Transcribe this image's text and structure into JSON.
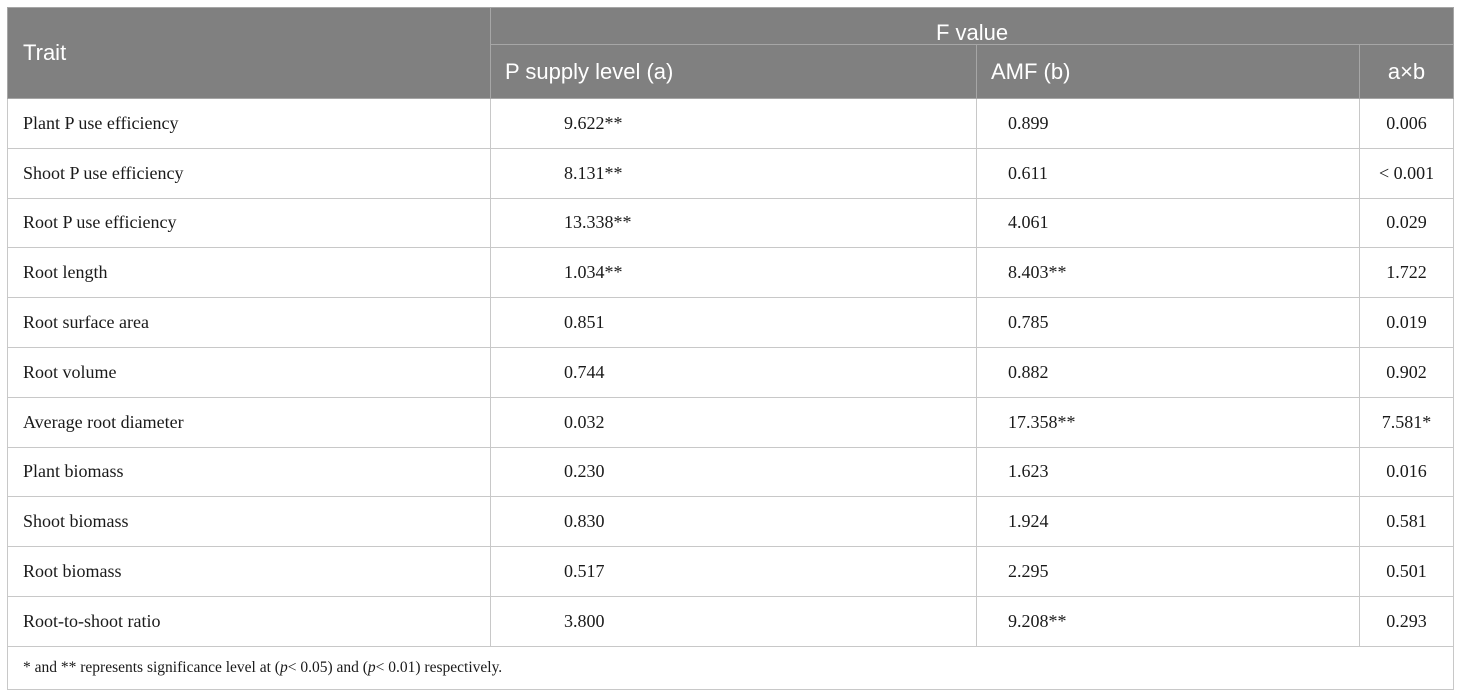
{
  "header": {
    "trait_label": "Trait",
    "group_label": "F value",
    "col_a": "P supply level (a)",
    "col_b": "AMF (b)",
    "col_ab": "a×b"
  },
  "rows": [
    {
      "trait": "Plant P use efficiency",
      "a": "9.622**",
      "b": "0.899",
      "ab": "0.006"
    },
    {
      "trait": "Shoot P use efficiency",
      "a": "8.131**",
      "b": "0.611",
      "ab": "< 0.001"
    },
    {
      "trait": "Root P use efficiency",
      "a": "13.338**",
      "b": "4.061",
      "ab": "0.029"
    },
    {
      "trait": "Root length",
      "a": "1.034**",
      "b": "8.403**",
      "ab": "1.722"
    },
    {
      "trait": "Root surface area",
      "a": "0.851",
      "b": "0.785",
      "ab": "0.019"
    },
    {
      "trait": "Root volume",
      "a": "0.744",
      "b": "0.882",
      "ab": "0.902"
    },
    {
      "trait": "Average root diameter",
      "a": "0.032",
      "b": "17.358**",
      "ab": "7.581*"
    },
    {
      "trait": "Plant biomass",
      "a": "0.230",
      "b": "1.623",
      "ab": "0.016"
    },
    {
      "trait": "Shoot biomass",
      "a": "0.830",
      "b": "1.924",
      "ab": "0.581"
    },
    {
      "trait": "Root biomass",
      "a": "0.517",
      "b": "2.295",
      "ab": "0.501"
    },
    {
      "trait": "Root-to-shoot ratio",
      "a": "3.800",
      "b": "9.208**",
      "ab": "0.293"
    }
  ],
  "footnote": {
    "part1": "* and ** represents significance level at (",
    "p1": "p",
    "part2": "< 0.05) and (",
    "p2": "p",
    "part3": "< 0.01) respectively."
  },
  "colors": {
    "header_bg": "#808080",
    "header_text": "#ffffff",
    "grid": "#c8c8c8"
  }
}
